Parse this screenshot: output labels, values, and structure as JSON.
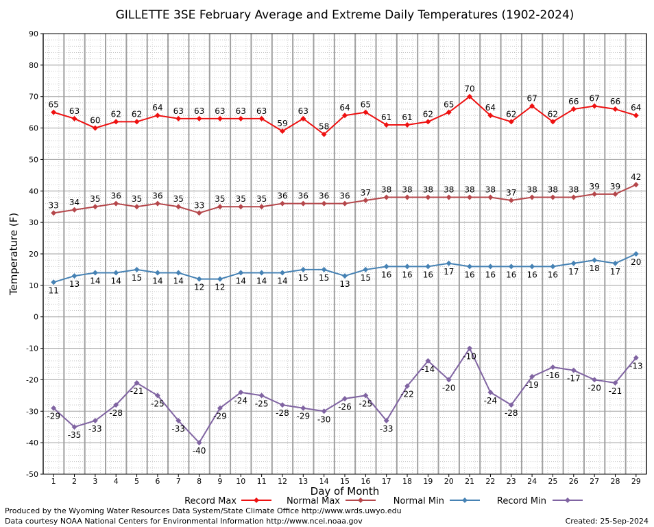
{
  "chart_data": {
    "type": "line",
    "title": "GILLETTE 3SE February Average and Extreme Daily Temperatures (1902-2024)",
    "xlabel": "Day of Month",
    "ylabel": "Temperature (F)",
    "x": [
      1,
      2,
      3,
      4,
      5,
      6,
      7,
      8,
      9,
      10,
      11,
      12,
      13,
      14,
      15,
      16,
      17,
      18,
      19,
      20,
      21,
      22,
      23,
      24,
      25,
      26,
      27,
      28,
      29
    ],
    "xlim": [
      0.5,
      29.5
    ],
    "ylim": [
      -50,
      90
    ],
    "yticks": [
      -50,
      -40,
      -30,
      -20,
      -10,
      0,
      10,
      20,
      30,
      40,
      50,
      60,
      70,
      80,
      90
    ],
    "grid": true,
    "legend_position": "bottom",
    "series": [
      {
        "name": "Record Max",
        "color": "#ee1111",
        "values": [
          65,
          63,
          60,
          62,
          62,
          64,
          63,
          63,
          63,
          63,
          63,
          59,
          63,
          58,
          64,
          65,
          61,
          61,
          62,
          65,
          70,
          64,
          62,
          67,
          62,
          66,
          67,
          66,
          64
        ]
      },
      {
        "name": "Normal Max",
        "color": "#b5474b",
        "values": [
          33,
          34,
          35,
          36,
          35,
          36,
          35,
          33,
          35,
          35,
          35,
          36,
          36,
          36,
          36,
          37,
          38,
          38,
          38,
          38,
          38,
          38,
          37,
          38,
          38,
          38,
          39,
          39,
          42
        ]
      },
      {
        "name": "Normal Min",
        "color": "#4682b4",
        "values": [
          11,
          13,
          14,
          14,
          15,
          14,
          14,
          12,
          12,
          14,
          14,
          14,
          15,
          15,
          13,
          15,
          16,
          16,
          16,
          17,
          16,
          16,
          16,
          16,
          16,
          17,
          18,
          17,
          20
        ]
      },
      {
        "name": "Record Min",
        "color": "#8064a2",
        "values": [
          -29,
          -35,
          -33,
          -28,
          -21,
          -25,
          -33,
          -40,
          -29,
          -24,
          -25,
          -28,
          -29,
          -30,
          -26,
          -25,
          -33,
          -22,
          -14,
          -20,
          -10,
          -24,
          -28,
          -19,
          -16,
          -17,
          -20,
          -21,
          -13
        ]
      }
    ]
  },
  "footer": {
    "produced_by": "Produced by the Wyoming Water Resources Data System/State Climate Office http://www.wrds.uwyo.edu",
    "courtesy": "Data courtesy NOAA National Centers for Environmental Information http://www.ncei.noaa.gov",
    "created": "Created: 25-Sep-2024"
  }
}
